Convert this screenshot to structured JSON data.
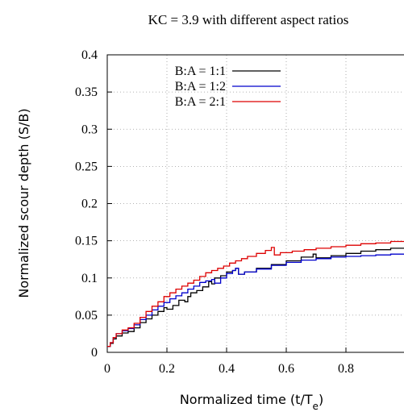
{
  "chart_data": {
    "type": "line",
    "title": "KC = 3.9 with different aspect ratios",
    "xlabel_main": "Normalized time (t/T",
    "xlabel_sub": "e",
    "xlabel_close": ")",
    "ylabel": "Normalized scour depth (S/B)",
    "xlim": [
      0,
      1
    ],
    "ylim": [
      0,
      0.4
    ],
    "x_ticks": [
      "0",
      "0.2",
      "0.4",
      "0.6",
      "0.8"
    ],
    "y_ticks": [
      "0",
      "0.05",
      "0.1",
      "0.15",
      "0.2",
      "0.25",
      "0.3",
      "0.35",
      "0.4"
    ],
    "grid": true,
    "legend_position": "top-left",
    "series": [
      {
        "name": "B:A = 1:1",
        "color": "#000000",
        "x": [
          0,
          0.01,
          0.02,
          0.03,
          0.05,
          0.07,
          0.09,
          0.11,
          0.13,
          0.15,
          0.17,
          0.19,
          0.2,
          0.22,
          0.24,
          0.26,
          0.27,
          0.28,
          0.3,
          0.32,
          0.34,
          0.35,
          0.36,
          0.38,
          0.4,
          0.42,
          0.43,
          0.44,
          0.46,
          0.5,
          0.55,
          0.6,
          0.65,
          0.69,
          0.7,
          0.75,
          0.8,
          0.85,
          0.9,
          0.95,
          1.0
        ],
        "y": [
          0.008,
          0.012,
          0.018,
          0.022,
          0.026,
          0.028,
          0.033,
          0.04,
          0.045,
          0.05,
          0.055,
          0.06,
          0.058,
          0.063,
          0.07,
          0.068,
          0.075,
          0.08,
          0.083,
          0.088,
          0.095,
          0.092,
          0.1,
          0.103,
          0.108,
          0.11,
          0.113,
          0.105,
          0.108,
          0.113,
          0.118,
          0.123,
          0.128,
          0.132,
          0.127,
          0.13,
          0.133,
          0.136,
          0.138,
          0.14,
          0.141
        ]
      },
      {
        "name": "B:A = 1:2",
        "color": "#0000cc",
        "x": [
          0,
          0.01,
          0.02,
          0.03,
          0.05,
          0.07,
          0.09,
          0.11,
          0.13,
          0.15,
          0.17,
          0.19,
          0.21,
          0.23,
          0.25,
          0.27,
          0.29,
          0.31,
          0.33,
          0.35,
          0.36,
          0.38,
          0.4,
          0.42,
          0.43,
          0.44,
          0.46,
          0.5,
          0.55,
          0.6,
          0.65,
          0.7,
          0.75,
          0.8,
          0.85,
          0.9,
          0.95,
          1.0
        ],
        "y": [
          0.008,
          0.013,
          0.02,
          0.025,
          0.029,
          0.032,
          0.037,
          0.044,
          0.05,
          0.057,
          0.062,
          0.067,
          0.072,
          0.076,
          0.08,
          0.085,
          0.089,
          0.094,
          0.096,
          0.098,
          0.093,
          0.1,
          0.106,
          0.11,
          0.113,
          0.105,
          0.108,
          0.112,
          0.117,
          0.121,
          0.124,
          0.126,
          0.128,
          0.129,
          0.13,
          0.131,
          0.132,
          0.133
        ]
      },
      {
        "name": "B:A = 2:1",
        "color": "#dd0000",
        "x": [
          0,
          0.01,
          0.02,
          0.03,
          0.05,
          0.07,
          0.09,
          0.11,
          0.13,
          0.15,
          0.17,
          0.19,
          0.21,
          0.23,
          0.25,
          0.27,
          0.29,
          0.31,
          0.33,
          0.35,
          0.37,
          0.39,
          0.41,
          0.43,
          0.45,
          0.47,
          0.5,
          0.53,
          0.55,
          0.56,
          0.58,
          0.62,
          0.66,
          0.7,
          0.75,
          0.8,
          0.85,
          0.9,
          0.95,
          1.0
        ],
        "y": [
          0.008,
          0.013,
          0.02,
          0.025,
          0.03,
          0.033,
          0.039,
          0.047,
          0.055,
          0.062,
          0.068,
          0.075,
          0.08,
          0.085,
          0.089,
          0.093,
          0.097,
          0.102,
          0.107,
          0.11,
          0.113,
          0.116,
          0.12,
          0.123,
          0.126,
          0.129,
          0.133,
          0.137,
          0.141,
          0.131,
          0.134,
          0.136,
          0.138,
          0.14,
          0.142,
          0.144,
          0.146,
          0.147,
          0.149,
          0.152
        ]
      }
    ]
  }
}
